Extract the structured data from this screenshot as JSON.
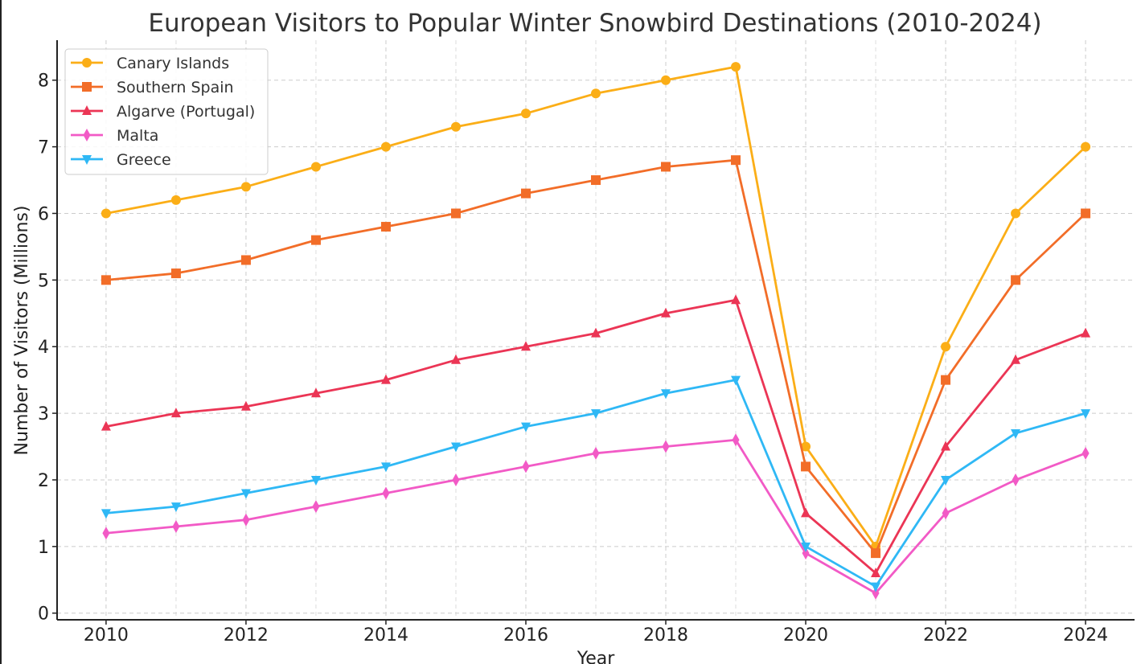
{
  "chart_data": {
    "type": "line",
    "title": "European Visitors to Popular Winter Snowbird Destinations (2010-2024)",
    "xlabel": "Year",
    "ylabel": "Number of Visitors (Millions)",
    "x": [
      2010,
      2011,
      2012,
      2013,
      2014,
      2015,
      2016,
      2017,
      2018,
      2019,
      2020,
      2021,
      2022,
      2023,
      2024
    ],
    "xticks": [
      2010,
      2012,
      2014,
      2016,
      2018,
      2020,
      2022,
      2024
    ],
    "yticks": [
      0,
      1,
      2,
      3,
      4,
      5,
      6,
      7,
      8
    ],
    "xlim": [
      2009.3,
      2024.7
    ],
    "ylim": [
      -0.1,
      8.6
    ],
    "grid": true,
    "legend_position": "top-left",
    "series": [
      {
        "name": "Canary Islands",
        "color": "#fbae17",
        "marker": "circle",
        "values": [
          6.0,
          6.2,
          6.4,
          6.7,
          7.0,
          7.3,
          7.5,
          7.8,
          8.0,
          8.2,
          2.5,
          1.0,
          4.0,
          6.0,
          7.0
        ]
      },
      {
        "name": "Southern Spain",
        "color": "#f26d28",
        "marker": "square",
        "values": [
          5.0,
          5.1,
          5.3,
          5.6,
          5.8,
          6.0,
          6.3,
          6.5,
          6.7,
          6.8,
          2.2,
          0.9,
          3.5,
          5.0,
          6.0
        ]
      },
      {
        "name": "Algarve (Portugal)",
        "color": "#eb3555",
        "marker": "triangle-up",
        "values": [
          2.8,
          3.0,
          3.1,
          3.3,
          3.5,
          3.8,
          4.0,
          4.2,
          4.5,
          4.7,
          1.5,
          0.6,
          2.5,
          3.8,
          4.2
        ]
      },
      {
        "name": "Malta",
        "color": "#f25ac6",
        "marker": "diamond",
        "values": [
          1.2,
          1.3,
          1.4,
          1.6,
          1.8,
          2.0,
          2.2,
          2.4,
          2.5,
          2.6,
          0.9,
          0.3,
          1.5,
          2.0,
          2.4
        ]
      },
      {
        "name": "Greece",
        "color": "#2fb8f5",
        "marker": "triangle-down",
        "values": [
          1.5,
          1.6,
          1.8,
          2.0,
          2.2,
          2.5,
          2.8,
          3.0,
          3.3,
          3.5,
          1.0,
          0.4,
          2.0,
          2.7,
          3.0
        ]
      }
    ]
  }
}
